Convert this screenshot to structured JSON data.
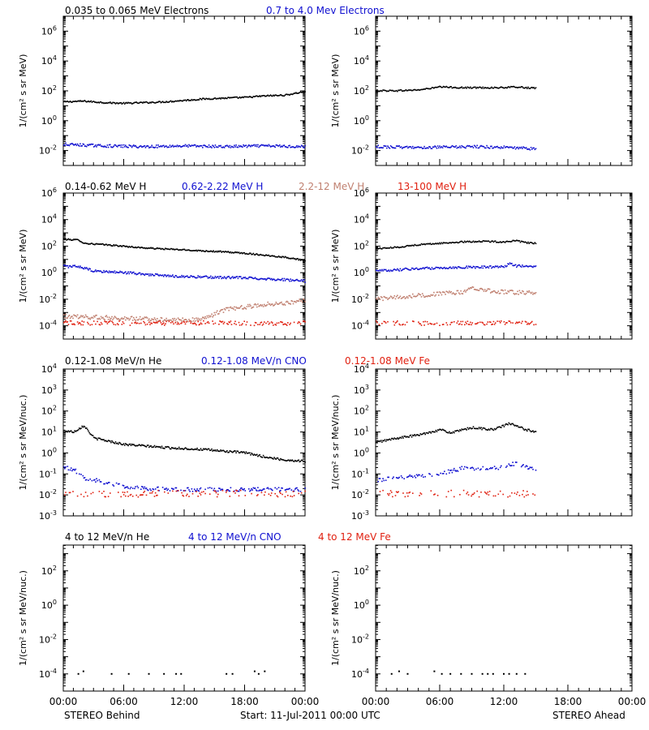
{
  "colors": {
    "black": "#000000",
    "blue": "#1010d0",
    "brown": "#c08070",
    "red": "#e02010"
  },
  "footer": {
    "left": "STEREO Behind",
    "center": "Start: 11-Jul-2011 00:00 UTC",
    "right": "STEREO Ahead"
  },
  "x_ticks": [
    "00:00",
    "06:00",
    "12:00",
    "18:00",
    "00:00"
  ],
  "chart_data": [
    {
      "id": "electrons",
      "type": "scatter",
      "legend": [
        {
          "text": "0.035 to 0.065 MeV Electrons",
          "color": "black"
        },
        {
          "text": "0.7 to 4.0 Mev Electrons",
          "color": "blue"
        }
      ],
      "ylabel": "1/(cm² s sr MeV)",
      "y_scale": "log",
      "y_ticks": [
        {
          "base": "10",
          "exp": "6",
          "v": 6
        },
        {
          "base": "10",
          "exp": "4",
          "v": 4
        },
        {
          "base": "10",
          "exp": "2",
          "v": 2
        },
        {
          "base": "10",
          "exp": "0",
          "v": 0
        },
        {
          "base": "10",
          "exp": "-2",
          "v": -2
        }
      ],
      "ylim_log10": [
        -3,
        7
      ],
      "xlim_hours": [
        0,
        24
      ],
      "behind": {
        "series": [
          {
            "color": "black",
            "x": [
              0,
              2,
              4,
              6,
              8,
              10,
              12,
              14,
              16,
              18,
              20,
              22,
              24
            ],
            "log10_y": [
              1.25,
              1.3,
              1.2,
              1.15,
              1.2,
              1.25,
              1.35,
              1.45,
              1.5,
              1.55,
              1.65,
              1.7,
              1.95
            ]
          },
          {
            "color": "blue",
            "x": [
              0,
              4,
              8,
              12,
              16,
              20,
              24
            ],
            "log10_y": [
              -1.6,
              -1.7,
              -1.75,
              -1.7,
              -1.75,
              -1.7,
              -1.75
            ]
          }
        ]
      },
      "ahead": {
        "series": [
          {
            "color": "black",
            "x": [
              0,
              2,
              4,
              6,
              8,
              10,
              12,
              13,
              15
            ],
            "log10_y": [
              2.0,
              2.0,
              2.05,
              2.25,
              2.2,
              2.2,
              2.2,
              2.25,
              2.15
            ]
          },
          {
            "color": "blue",
            "x": [
              0,
              3,
              6,
              9,
              12,
              15
            ],
            "log10_y": [
              -1.75,
              -1.8,
              -1.8,
              -1.75,
              -1.8,
              -1.9
            ]
          }
        ]
      }
    },
    {
      "id": "hydrogen",
      "type": "scatter",
      "legend": [
        {
          "text": "0.14-0.62 MeV H",
          "color": "black"
        },
        {
          "text": "0.62-2.22 MeV H",
          "color": "blue"
        },
        {
          "text": "2.2-12 MeV H",
          "color": "brown"
        },
        {
          "text": "13-100 MeV H",
          "color": "red"
        }
      ],
      "ylabel": "1/(cm² s sr MeV)",
      "y_scale": "log",
      "y_ticks": [
        {
          "base": "10",
          "exp": "6",
          "v": 6
        },
        {
          "base": "10",
          "exp": "4",
          "v": 4
        },
        {
          "base": "10",
          "exp": "2",
          "v": 2
        },
        {
          "base": "10",
          "exp": "0",
          "v": 0
        },
        {
          "base": "10",
          "exp": "-2",
          "v": -2
        },
        {
          "base": "10",
          "exp": "-4",
          "v": -4
        }
      ],
      "ylim_log10": [
        -5,
        6
      ],
      "xlim_hours": [
        0,
        24
      ],
      "behind": {
        "series": [
          {
            "color": "black",
            "x": [
              0,
              1.5,
              2,
              4,
              8,
              12,
              16,
              18,
              20,
              22,
              24
            ],
            "log10_y": [
              2.5,
              2.45,
              2.2,
              2.1,
              1.85,
              1.7,
              1.55,
              1.45,
              1.3,
              1.15,
              0.9
            ]
          },
          {
            "color": "blue",
            "x": [
              0,
              1.5,
              3,
              6,
              10,
              14,
              18,
              22,
              24
            ],
            "log10_y": [
              0.45,
              0.45,
              0.1,
              0.0,
              -0.25,
              -0.35,
              -0.4,
              -0.55,
              -0.65
            ]
          },
          {
            "color": "brown",
            "x": [
              0,
              4,
              8,
              12,
              14,
              15,
              16,
              18,
              20,
              22,
              24
            ],
            "log10_y": [
              -3.3,
              -3.4,
              -3.5,
              -3.6,
              -3.5,
              -3.1,
              -2.8,
              -2.6,
              -2.4,
              -2.3,
              -2.1
            ]
          },
          {
            "color": "red",
            "x": [
              0,
              4,
              8,
              12,
              16,
              20,
              24
            ],
            "log10_y": [
              -3.8,
              -3.8,
              -3.85,
              -3.8,
              -3.8,
              -3.85,
              -3.8
            ]
          }
        ]
      },
      "ahead": {
        "series": [
          {
            "color": "black",
            "x": [
              0,
              2,
              4,
              6,
              8,
              10,
              12,
              13,
              14,
              15
            ],
            "log10_y": [
              1.8,
              1.9,
              2.1,
              2.2,
              2.3,
              2.35,
              2.3,
              2.4,
              2.25,
              2.2
            ]
          },
          {
            "color": "blue",
            "x": [
              0,
              2,
              4,
              6,
              8,
              10,
              12,
              12.5,
              13,
              15
            ],
            "log10_y": [
              0.1,
              0.2,
              0.3,
              0.35,
              0.4,
              0.4,
              0.45,
              0.7,
              0.5,
              0.45
            ]
          },
          {
            "color": "brown",
            "x": [
              0,
              3,
              6,
              8,
              9,
              11,
              13,
              15
            ],
            "log10_y": [
              -2.0,
              -1.8,
              -1.6,
              -1.5,
              -1.2,
              -1.4,
              -1.5,
              -1.5
            ]
          },
          {
            "color": "red",
            "x": [
              0,
              3,
              6,
              9,
              12,
              15
            ],
            "log10_y": [
              -3.8,
              -3.8,
              -3.85,
              -3.8,
              -3.8,
              -3.85
            ]
          }
        ]
      }
    },
    {
      "id": "heavy-ions-low",
      "type": "scatter",
      "legend": [
        {
          "text": "0.12-1.08 MeV/n He",
          "color": "black"
        },
        {
          "text": "0.12-1.08 MeV/n CNO",
          "color": "blue"
        },
        {
          "text": "0.12-1.08 MeV Fe",
          "color": "red"
        }
      ],
      "ylabel": "1/(cm² s sr MeV/nuc.)",
      "y_scale": "log",
      "y_ticks": [
        {
          "base": "10",
          "exp": "4",
          "v": 4
        },
        {
          "base": "10",
          "exp": "3",
          "v": 3
        },
        {
          "base": "10",
          "exp": "2",
          "v": 2
        },
        {
          "base": "10",
          "exp": "1",
          "v": 1
        },
        {
          "base": "10",
          "exp": "0",
          "v": 0
        },
        {
          "base": "10",
          "exp": "-1",
          "v": -1
        },
        {
          "base": "10",
          "exp": "-2",
          "v": -2
        },
        {
          "base": "10",
          "exp": "-3",
          "v": -3
        }
      ],
      "ylim_log10": [
        -3,
        4
      ],
      "xlim_hours": [
        0,
        24
      ],
      "behind": {
        "series": [
          {
            "color": "black",
            "x": [
              0,
              1,
              2,
              3,
              6,
              10,
              14,
              18,
              20,
              22,
              24
            ],
            "log10_y": [
              1.05,
              1.0,
              1.3,
              0.7,
              0.4,
              0.25,
              0.15,
              0.0,
              -0.2,
              -0.35,
              -0.4
            ]
          },
          {
            "color": "blue",
            "x": [
              0,
              1,
              2,
              4,
              6,
              8,
              12,
              16,
              20,
              24
            ],
            "log10_y": [
              -0.7,
              -0.8,
              -1.2,
              -1.4,
              -1.6,
              -1.7,
              -1.75,
              -1.75,
              -1.75,
              -1.75
            ]
          },
          {
            "color": "red",
            "x": [
              0,
              4,
              8,
              12,
              16,
              20,
              24
            ],
            "log10_y": [
              -1.95,
              -1.95,
              -1.95,
              -1.95,
              -1.95,
              -1.95,
              -1.95
            ]
          }
        ]
      },
      "ahead": {
        "series": [
          {
            "color": "black",
            "x": [
              0,
              2,
              4,
              6,
              7,
              9,
              11,
              12.5,
              14,
              15
            ],
            "log10_y": [
              0.5,
              0.7,
              0.85,
              1.1,
              0.95,
              1.2,
              1.1,
              1.4,
              1.1,
              1.0
            ]
          },
          {
            "color": "blue",
            "x": [
              0,
              2,
              4,
              6,
              8,
              10,
              12,
              13,
              15
            ],
            "log10_y": [
              -1.3,
              -1.2,
              -1.1,
              -1.0,
              -0.75,
              -0.75,
              -0.7,
              -0.5,
              -0.85
            ]
          },
          {
            "color": "red",
            "x": [
              0,
              3,
              6,
              9,
              12,
              15
            ],
            "log10_y": [
              -1.95,
              -1.95,
              -1.95,
              -1.95,
              -1.95,
              -1.95
            ]
          }
        ]
      }
    },
    {
      "id": "heavy-ions-high",
      "type": "scatter",
      "legend": [
        {
          "text": "4 to 12 MeV/n He",
          "color": "black"
        },
        {
          "text": "4 to 12 MeV/n CNO",
          "color": "blue"
        },
        {
          "text": "4 to 12 MeV Fe",
          "color": "red"
        }
      ],
      "ylabel": "1/(cm² s sr MeV/nuc.)",
      "y_scale": "log",
      "y_ticks": [
        {
          "base": "10",
          "exp": "2",
          "v": 2
        },
        {
          "base": "10",
          "exp": "0",
          "v": 0
        },
        {
          "base": "10",
          "exp": "-2",
          "v": -2
        },
        {
          "base": "10",
          "exp": "-4",
          "v": -4
        }
      ],
      "ylim_log10": [
        -5,
        3.5
      ],
      "xlim_hours": [
        0,
        24
      ],
      "behind": {
        "series": [
          {
            "color": "black",
            "x": [
              1.5,
              2.0,
              4.8,
              6.5,
              8.5,
              10.0,
              11.2,
              11.7,
              16.2,
              16.8,
              19.0,
              19.4,
              20.0
            ],
            "log10_y": [
              -4.0,
              -3.85,
              -4.0,
              -4.0,
              -4.0,
              -4.0,
              -4.0,
              -4.0,
              -4.0,
              -4.0,
              -3.85,
              -4.0,
              -3.85
            ]
          }
        ]
      },
      "ahead": {
        "series": [
          {
            "color": "black",
            "x": [
              1.5,
              2.2,
              3.0,
              5.5,
              6.2,
              7.0,
              8.0,
              9.0,
              10.0,
              10.5,
              11.0,
              12.0,
              12.5,
              13.2,
              14.0
            ],
            "log10_y": [
              -4.0,
              -3.85,
              -4.0,
              -3.85,
              -4.0,
              -4.0,
              -4.0,
              -4.0,
              -4.0,
              -4.0,
              -4.0,
              -4.0,
              -4.0,
              -4.0,
              -4.0
            ]
          }
        ]
      }
    }
  ]
}
